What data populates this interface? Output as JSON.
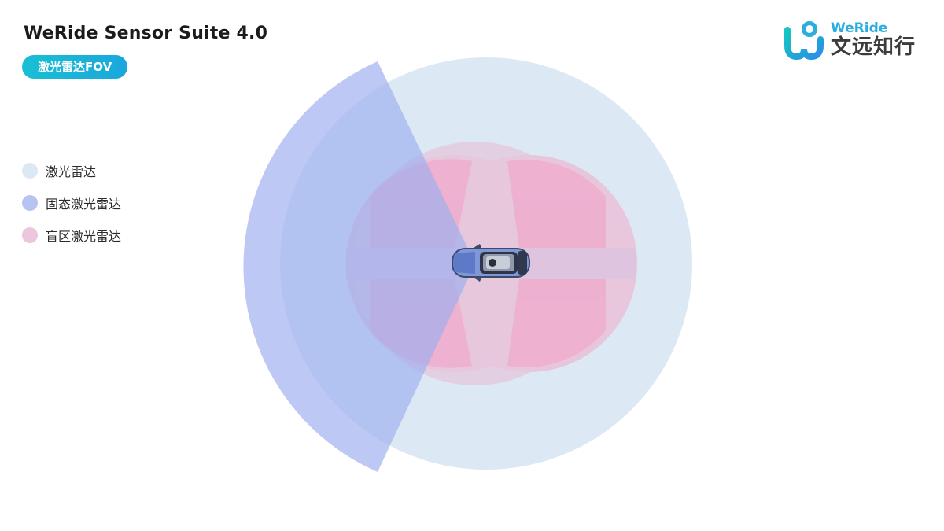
{
  "header": {
    "title": "WeRide Sensor Suite 4.0",
    "tag": "激光雷达FOV"
  },
  "logo": {
    "en": "WeRide",
    "cn": "文远知行"
  },
  "legend": [
    {
      "label": "激光雷达",
      "color": "#dde8f5"
    },
    {
      "label": "固态激光雷达",
      "color": "#b7c3f0"
    },
    {
      "label": "盲区激光雷达",
      "color": "#ebc6dc"
    }
  ],
  "colors": {
    "lidar_fov": "#dde8f5",
    "solid_state_fov": "#aebcf2",
    "blind_spot_fov": "#eab6d2",
    "blind_spot_overlap": "#f0a7cb",
    "tag_bg": "#19bfd3",
    "logo_accent": "#2aaee0"
  }
}
